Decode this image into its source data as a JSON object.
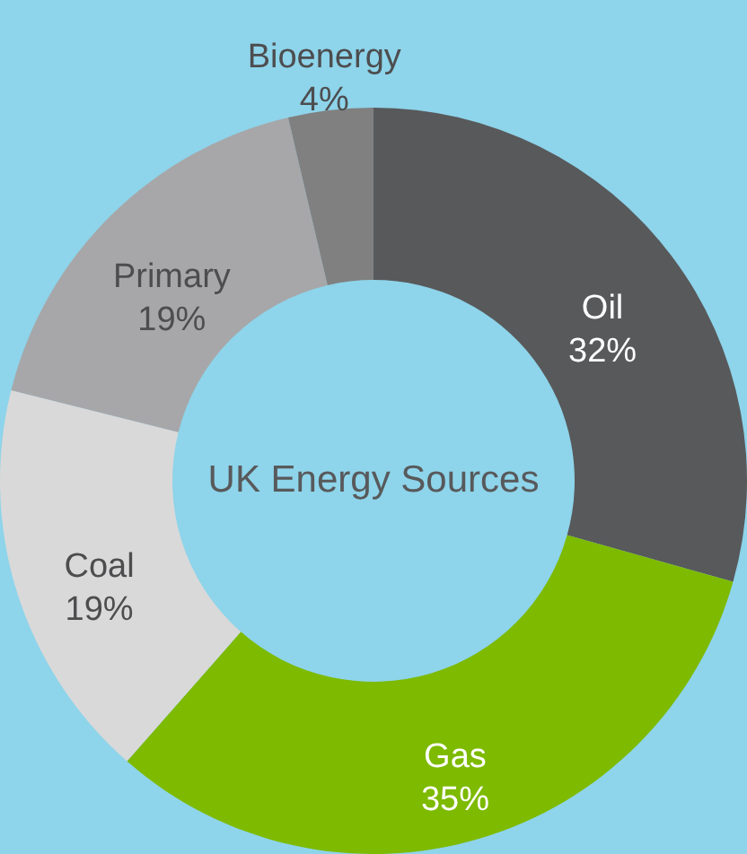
{
  "chart_data": {
    "type": "donut",
    "title": "UK Energy Sources",
    "categories": [
      "Oil",
      "Gas",
      "Coal",
      "Primary",
      "Bioenergy"
    ],
    "values": [
      32,
      35,
      19,
      19,
      4
    ],
    "value_labels": [
      "32%",
      "35%",
      "19%",
      "19%",
      "4%"
    ],
    "colors": [
      "#58595b",
      "#7dba00",
      "#d9d9d9",
      "#a7a7a9",
      "#808080"
    ]
  }
}
